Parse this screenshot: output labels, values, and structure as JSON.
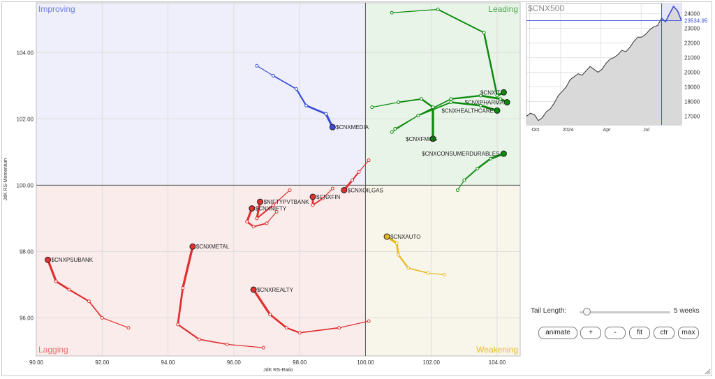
{
  "chart_data": {
    "type": "rrg",
    "xlabel": "JdK RS-Ratio",
    "ylabel": "JdK RS-Momentum",
    "xlim": [
      90,
      104.7
    ],
    "ylim": [
      94.85,
      105.5
    ],
    "xticks": [
      "90.00",
      "92.00",
      "94.00",
      "96.00",
      "98.00",
      "100.00",
      "102.00",
      "104.00"
    ],
    "yticks": [
      "96.00",
      "98.00",
      "100.00",
      "102.00",
      "104.00"
    ],
    "quadrants": [
      {
        "name": "Improving",
        "color": "#6f7fe0"
      },
      {
        "name": "Leading",
        "color": "#4caa4c"
      },
      {
        "name": "Lagging",
        "color": "#e87070"
      },
      {
        "name": "Weakening",
        "color": "#e8b822"
      }
    ],
    "series": [
      {
        "name": "$CNXIT",
        "color": "#0c8a0c",
        "points": [
          [
            100.8,
            105.2
          ],
          [
            102.2,
            105.3
          ],
          [
            103.6,
            104.6
          ],
          [
            104.0,
            102.7
          ],
          [
            104.2,
            102.8
          ]
        ]
      },
      {
        "name": "$CNXPHARMA",
        "color": "#0c8a0c",
        "points": [
          [
            100.8,
            101.6
          ],
          [
            101.6,
            102.1
          ],
          [
            102.6,
            102.6
          ],
          [
            103.5,
            102.7
          ],
          [
            104.1,
            102.6
          ],
          [
            104.3,
            102.5
          ]
        ]
      },
      {
        "name": "$CNXHEALTHCARE",
        "color": "#0c8a0c",
        "points": [
          [
            100.9,
            101.7
          ],
          [
            101.6,
            102.1
          ],
          [
            102.6,
            102.5
          ],
          [
            103.5,
            102.4
          ],
          [
            104.0,
            102.25
          ]
        ]
      },
      {
        "name": "$CNXFMCG",
        "color": "#0c8a0c",
        "points": [
          [
            100.2,
            102.35
          ],
          [
            101.0,
            102.5
          ],
          [
            101.7,
            102.6
          ],
          [
            102.05,
            102.35
          ],
          [
            102.05,
            101.4
          ]
        ]
      },
      {
        "name": "$CNXCONSUMERDURABLES",
        "color": "#0c8a0c",
        "points": [
          [
            102.8,
            99.85
          ],
          [
            103.0,
            100.15
          ],
          [
            103.4,
            100.5
          ],
          [
            103.8,
            100.8
          ],
          [
            104.2,
            100.95
          ]
        ]
      },
      {
        "name": "$CNXMEDIA",
        "color": "#3c4fd6",
        "points": [
          [
            96.7,
            103.6
          ],
          [
            97.2,
            103.3
          ],
          [
            97.9,
            102.9
          ],
          [
            98.2,
            102.4
          ],
          [
            98.8,
            102.15
          ],
          [
            99.0,
            101.75
          ]
        ]
      },
      {
        "name": "$CNXOILGAS",
        "color": "#e03030",
        "points": [
          [
            100.1,
            100.75
          ],
          [
            99.8,
            100.4
          ],
          [
            99.6,
            100.15
          ],
          [
            99.35,
            99.85
          ]
        ]
      },
      {
        "name": "$CNXFIN",
        "color": "#e03030",
        "points": [
          [
            99.0,
            99.9
          ],
          [
            98.7,
            99.6
          ],
          [
            98.4,
            99.4
          ],
          [
            98.4,
            99.65
          ]
        ]
      },
      {
        "name": "$NIFTYPVTBANK",
        "color": "#e03030",
        "points": [
          [
            97.7,
            99.85
          ],
          [
            97.2,
            99.4
          ],
          [
            96.7,
            99.0
          ],
          [
            96.8,
            99.5
          ]
        ]
      },
      {
        "name": "$CNXNIFTY",
        "color": "#e03030",
        "points": [
          [
            97.3,
            99.2
          ],
          [
            97.0,
            98.85
          ],
          [
            96.6,
            98.75
          ],
          [
            96.4,
            98.9
          ],
          [
            96.55,
            99.3
          ]
        ]
      },
      {
        "name": "$CNXMETAL",
        "color": "#e03030",
        "points": [
          [
            96.9,
            95.1
          ],
          [
            95.8,
            95.2
          ],
          [
            94.95,
            95.35
          ],
          [
            94.3,
            95.8
          ],
          [
            94.45,
            96.9
          ],
          [
            94.75,
            98.15
          ]
        ]
      },
      {
        "name": "$CNXPSUBANK",
        "color": "#e03030",
        "points": [
          [
            92.8,
            95.7
          ],
          [
            92.0,
            96.0
          ],
          [
            91.6,
            96.5
          ],
          [
            91.0,
            96.85
          ],
          [
            90.6,
            97.1
          ],
          [
            90.35,
            97.75
          ]
        ]
      },
      {
        "name": "$CNXREALTY",
        "color": "#e03030",
        "points": [
          [
            100.1,
            95.9
          ],
          [
            99.2,
            95.7
          ],
          [
            98.0,
            95.55
          ],
          [
            97.6,
            95.7
          ],
          [
            97.1,
            96.1
          ],
          [
            96.6,
            96.85
          ]
        ]
      },
      {
        "name": "$CNXAUTO",
        "color": "#e8b822",
        "points": [
          [
            102.4,
            97.3
          ],
          [
            101.9,
            97.35
          ],
          [
            101.3,
            97.5
          ],
          [
            101.0,
            97.9
          ],
          [
            100.95,
            98.25
          ],
          [
            100.65,
            98.45
          ]
        ]
      }
    ]
  },
  "benchmark": {
    "title": "$CNX500",
    "last_value": "23534.95",
    "yticks": [
      "24000",
      "23000",
      "22000",
      "21000",
      "20000",
      "19000",
      "18000",
      "17000"
    ],
    "xticks": [
      "Oct",
      "2024",
      "Apr",
      "Jul"
    ],
    "series": [
      17000,
      17200,
      17100,
      16700,
      16900,
      17300,
      17500,
      17900,
      18400,
      18700,
      19000,
      19500,
      19700,
      19900,
      19800,
      20100,
      20400,
      20200,
      20000,
      20200,
      20600,
      20900,
      21000,
      21200,
      21500,
      21400,
      21700,
      22100,
      22400,
      22400,
      22600,
      22900,
      23100,
      23200,
      23700,
      23450,
      24000,
      24500,
      24200,
      23530
    ]
  },
  "controls": {
    "tail_label": "Tail Length:",
    "tail_value": "5 weeks",
    "tail_weeks": 5,
    "tail_fraction": 0.08,
    "buttons": [
      "animate",
      "+",
      "-",
      "fit",
      "ctr",
      "max"
    ]
  }
}
